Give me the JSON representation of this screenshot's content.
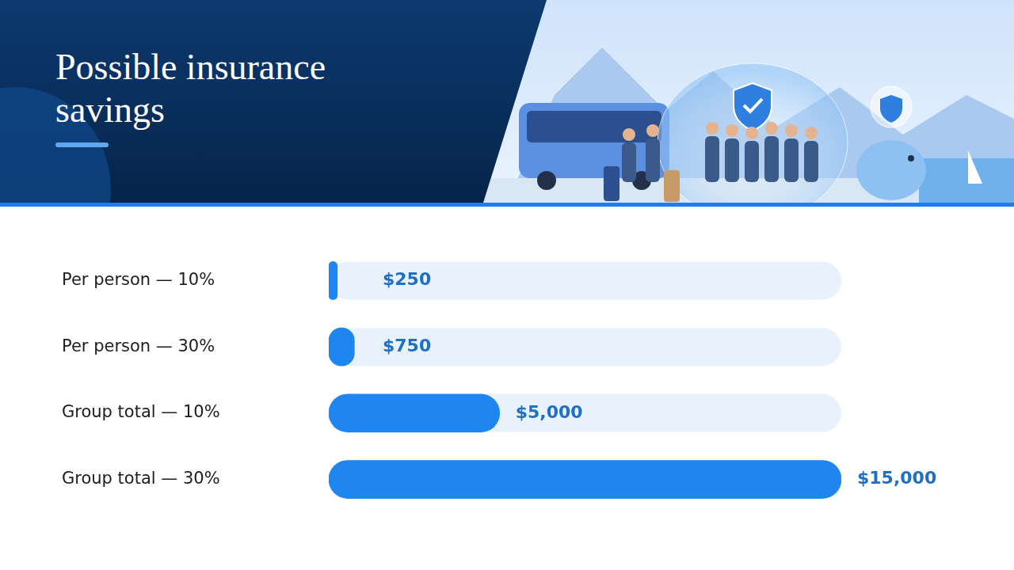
{
  "title": "Possible insurance savings",
  "chart_data": {
    "type": "bar",
    "orientation": "horizontal",
    "categories": [
      "Per person — 10%",
      "Per person — 30%",
      "Group total — 10%",
      "Group total — 30%"
    ],
    "values": [
      250,
      750,
      5000,
      15000
    ],
    "value_labels": [
      "$250",
      "$750",
      "$5,000",
      "$15,000"
    ],
    "color": "#1f86f0",
    "xlim": [
      0,
      15000
    ],
    "grid": false,
    "data_labels": true,
    "tick_labels": "y"
  }
}
